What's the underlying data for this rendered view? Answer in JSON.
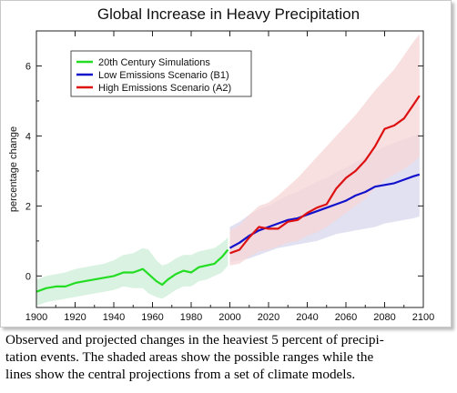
{
  "chart_data": {
    "type": "line",
    "title": "Global Increase in Heavy Precipitation",
    "ylabel": "percentage change",
    "xlabel": "",
    "xlim": [
      1900,
      2100
    ],
    "ylim": [
      -0.9,
      7
    ],
    "x_ticks": [
      1900,
      1920,
      1940,
      1960,
      1980,
      2000,
      2020,
      2040,
      2060,
      2080,
      2100
    ],
    "y_ticks": [
      0,
      2,
      4,
      6
    ],
    "grid": false,
    "legend_position": "top-left",
    "legend": [
      "20th Century Simulations",
      "Low Emissions Scenario (B1)",
      "High Emissions Scenario (A2)"
    ],
    "series": [
      {
        "name": "20th Century Simulations",
        "color": "#22dd22",
        "band_color": "#d3f0dc",
        "x": [
          1900,
          1905,
          1910,
          1915,
          1920,
          1925,
          1930,
          1935,
          1940,
          1945,
          1950,
          1955,
          1958,
          1962,
          1965,
          1968,
          1972,
          1976,
          1980,
          1984,
          1988,
          1992,
          1996,
          1999
        ],
        "values": [
          -0.45,
          -0.35,
          -0.3,
          -0.3,
          -0.2,
          -0.15,
          -0.1,
          -0.05,
          0.0,
          0.1,
          0.1,
          0.2,
          0.05,
          -0.15,
          -0.25,
          -0.1,
          0.05,
          0.15,
          0.1,
          0.25,
          0.3,
          0.35,
          0.55,
          0.75
        ],
        "lower": [
          -0.85,
          -0.75,
          -0.7,
          -0.65,
          -0.6,
          -0.55,
          -0.5,
          -0.45,
          -0.4,
          -0.3,
          -0.35,
          -0.35,
          -0.5,
          -0.6,
          -0.65,
          -0.55,
          -0.4,
          -0.3,
          -0.3,
          -0.15,
          -0.1,
          0.0,
          0.1,
          0.3
        ],
        "upper": [
          -0.1,
          0.0,
          0.05,
          0.1,
          0.2,
          0.25,
          0.3,
          0.35,
          0.45,
          0.6,
          0.65,
          0.8,
          0.75,
          0.45,
          0.3,
          0.35,
          0.5,
          0.6,
          0.6,
          0.7,
          0.75,
          0.8,
          0.95,
          1.1
        ]
      },
      {
        "name": "Low Emissions Scenario (B1)",
        "color": "#1111cc",
        "band_color": "#dcdcef",
        "x": [
          2000,
          2005,
          2010,
          2015,
          2020,
          2025,
          2030,
          2035,
          2040,
          2045,
          2050,
          2055,
          2060,
          2065,
          2070,
          2075,
          2080,
          2085,
          2090,
          2095,
          2098
        ],
        "values": [
          0.8,
          0.95,
          1.15,
          1.3,
          1.4,
          1.5,
          1.6,
          1.65,
          1.75,
          1.85,
          1.95,
          2.05,
          2.15,
          2.3,
          2.4,
          2.55,
          2.6,
          2.65,
          2.75,
          2.85,
          2.9
        ],
        "lower": [
          0.4,
          0.45,
          0.5,
          0.6,
          0.7,
          0.8,
          0.85,
          0.9,
          0.95,
          1.0,
          1.1,
          1.2,
          1.25,
          1.3,
          1.35,
          1.4,
          1.5,
          1.55,
          1.6,
          1.65,
          1.7
        ],
        "upper": [
          1.4,
          1.55,
          1.75,
          1.9,
          2.0,
          2.15,
          2.3,
          2.4,
          2.55,
          2.7,
          2.8,
          2.95,
          3.1,
          3.25,
          3.4,
          3.55,
          3.7,
          3.8,
          3.9,
          4.0,
          4.05
        ]
      },
      {
        "name": "High Emissions Scenario (A2)",
        "color": "#dd1111",
        "band_color": "#f6d6d6",
        "x": [
          2000,
          2005,
          2010,
          2015,
          2020,
          2025,
          2030,
          2035,
          2040,
          2045,
          2050,
          2055,
          2060,
          2065,
          2070,
          2075,
          2080,
          2085,
          2090,
          2095,
          2098
        ],
        "values": [
          0.65,
          0.75,
          1.1,
          1.4,
          1.35,
          1.35,
          1.55,
          1.6,
          1.8,
          1.95,
          2.05,
          2.5,
          2.8,
          3.0,
          3.3,
          3.7,
          4.2,
          4.3,
          4.5,
          4.9,
          5.15
        ],
        "lower": [
          0.3,
          0.35,
          0.55,
          0.7,
          0.75,
          0.85,
          0.95,
          1.0,
          1.15,
          1.25,
          1.4,
          1.6,
          1.8,
          2.0,
          2.2,
          2.5,
          2.75,
          2.9,
          3.05,
          3.25,
          3.4
        ],
        "upper": [
          1.3,
          1.45,
          1.75,
          2.0,
          2.1,
          2.3,
          2.55,
          2.8,
          3.1,
          3.4,
          3.7,
          4.0,
          4.3,
          4.6,
          4.95,
          5.3,
          5.6,
          5.9,
          6.3,
          6.7,
          6.9
        ]
      }
    ]
  },
  "caption": {
    "lines": [
      "Observed and projected changes in the heaviest 5 percent of precipi-",
      "tation events.  The shaded areas show the possible ranges while the",
      "lines show the central projections from a set of climate models."
    ]
  }
}
